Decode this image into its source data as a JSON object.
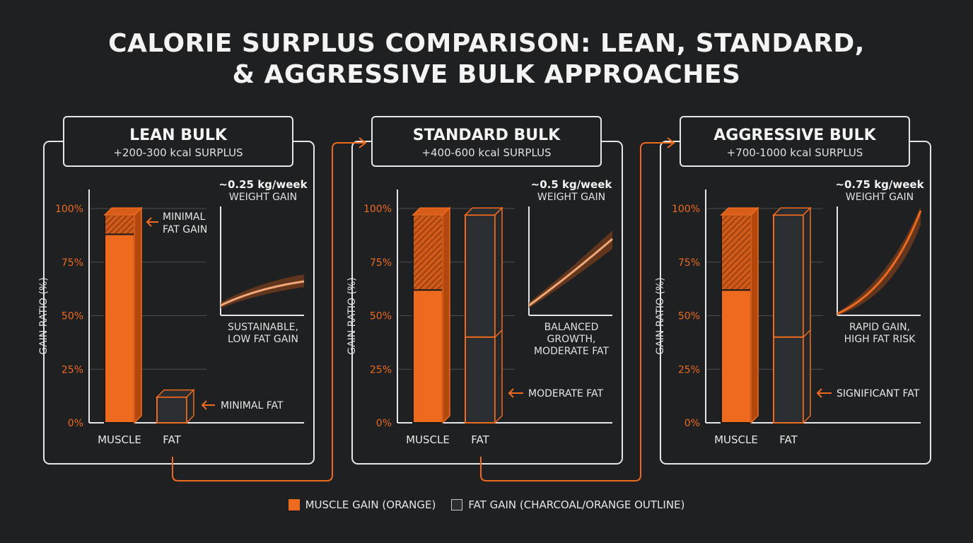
{
  "title_line1": "CALORIE SURPLUS COMPARISON: LEAN, STANDARD,",
  "title_line2": "& AGGRESSIVE BULK APPROACHES",
  "colors": {
    "background": "#1e2022",
    "muscle": "#ee6a1f",
    "muscle_dark": "#b3480f",
    "fat_fill": "#2b2e31",
    "panel_border": "#e6e6e6",
    "connector": "#ee6a1f"
  },
  "legend": {
    "muscle_label": "MUSCLE GAIN (ORANGE)",
    "fat_label": "FAT GAIN (CHARCOAL/ORANGE OUTLINE)"
  },
  "chart_data": [
    {
      "type": "bar",
      "header": "LEAN BULK",
      "surplus": "+200-300 kcal SURPLUS",
      "ylabel": "GAIN RATIO (%)",
      "yticks": [
        "0%",
        "25%",
        "50%",
        "75%",
        "100%"
      ],
      "ylim": [
        0,
        100
      ],
      "categories": [
        "MUSCLE",
        "FAT"
      ],
      "bars": {
        "muscle": {
          "total": 97,
          "muscle_part": 88
        },
        "fat": {
          "total": 12,
          "muscle_part": 0
        }
      },
      "annotations": {
        "top": [
          "MINIMAL",
          "FAT GAIN"
        ],
        "side": "MINIMAL FAT"
      },
      "trend": {
        "rate": "~0.25 kg/week",
        "rate_label": "WEIGHT GAIN",
        "caption": [
          "SUSTAINABLE,",
          "LOW FAT GAIN"
        ],
        "curve": "concave-low"
      }
    },
    {
      "type": "bar",
      "header": "STANDARD BULK",
      "surplus": "+400-600 kcal SURPLUS",
      "ylabel": "GAIN RATIO (%)",
      "yticks": [
        "0%",
        "25%",
        "50%",
        "75%",
        "100%"
      ],
      "ylim": [
        0,
        100
      ],
      "categories": [
        "MUSCLE",
        "FAT"
      ],
      "bars": {
        "muscle": {
          "total": 97,
          "muscle_part": 62
        },
        "fat": {
          "total": 97,
          "muscle_part": 0,
          "divider": 40
        }
      },
      "annotations": {
        "side": "MODERATE FAT"
      },
      "trend": {
        "rate": "~0.5 kg/week",
        "rate_label": "WEIGHT GAIN",
        "caption": [
          "BALANCED",
          "GROWTH,",
          "MODERATE FAT"
        ],
        "curve": "linear"
      }
    },
    {
      "type": "bar",
      "header": "AGGRESSIVE BULK",
      "surplus": "+700-1000 kcal SURPLUS",
      "ylabel": "GAIN RATIO (%)",
      "yticks": [
        "0%",
        "25%",
        "50%",
        "75%",
        "100%"
      ],
      "ylim": [
        0,
        100
      ],
      "categories": [
        "MUSCLE",
        "FAT"
      ],
      "bars": {
        "muscle": {
          "total": 97,
          "muscle_part": 62
        },
        "fat": {
          "total": 97,
          "muscle_part": 0,
          "divider": 40
        }
      },
      "annotations": {
        "side": "SIGNIFICANT FAT"
      },
      "trend": {
        "rate": "~0.75 kg/week",
        "rate_label": "WEIGHT GAIN",
        "caption": [
          "RAPID GAIN,",
          "HIGH FAT RISK"
        ],
        "curve": "convex"
      }
    }
  ]
}
